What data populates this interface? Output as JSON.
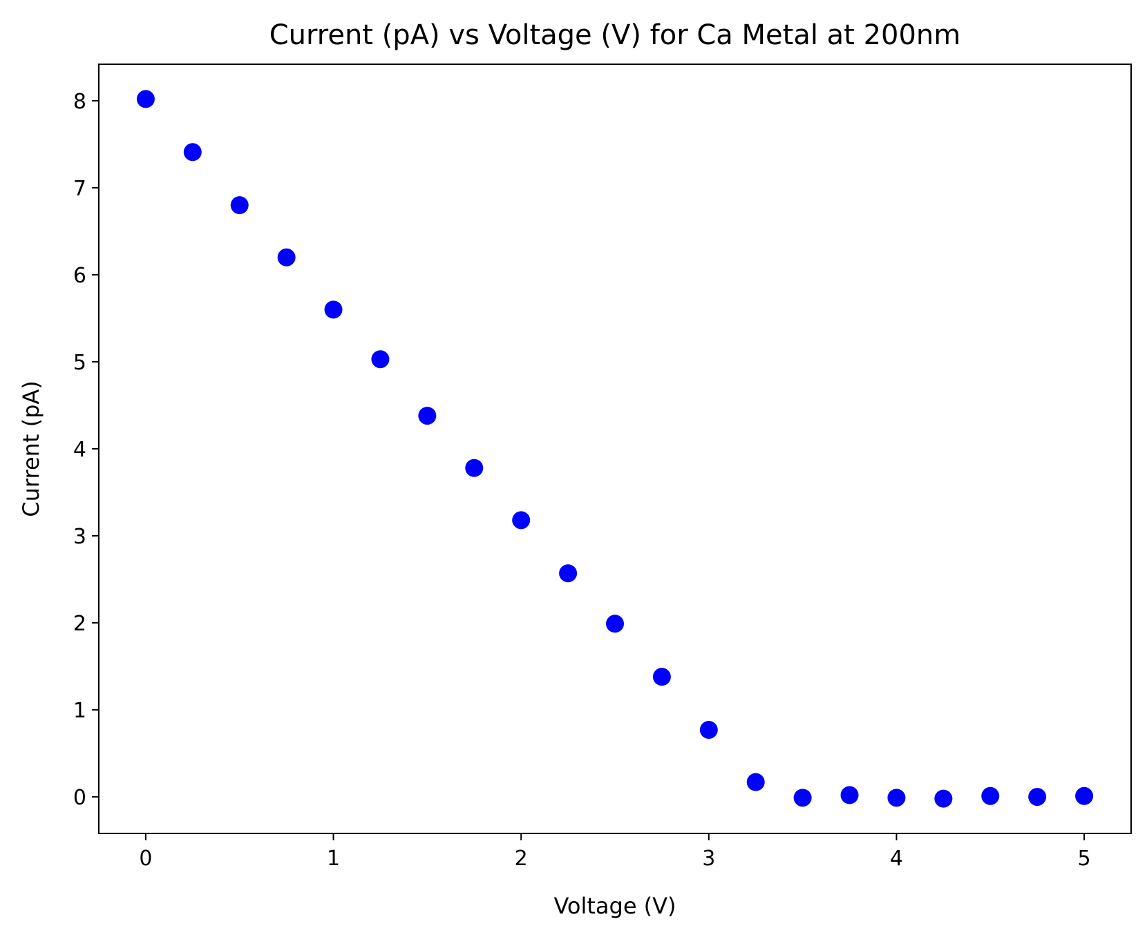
{
  "chart_data": {
    "type": "scatter",
    "title": "Current (pA) vs Voltage (V) for Ca Metal at 200nm",
    "xlabel": "Voltage (V)",
    "ylabel": "Current (pA)",
    "xlim": [
      -0.25,
      5.25
    ],
    "ylim": [
      -0.42,
      8.42
    ],
    "xticks": [
      0,
      1,
      2,
      3,
      4,
      5
    ],
    "yticks": [
      0,
      1,
      2,
      3,
      4,
      5,
      6,
      7,
      8
    ],
    "grid": false,
    "marker_color": "#0000ff",
    "series": [
      {
        "x": [
          0,
          0.25,
          0.5,
          0.75,
          1.0,
          1.25,
          1.5,
          1.75,
          2.0,
          2.25,
          2.5,
          2.75,
          3.0,
          3.25,
          3.5,
          3.75,
          4.0,
          4.25,
          4.5,
          4.75,
          5.0
        ],
        "y": [
          8.02,
          7.41,
          6.8,
          6.2,
          5.6,
          5.03,
          4.38,
          3.78,
          3.18,
          2.57,
          1.99,
          1.38,
          0.77,
          0.17,
          -0.01,
          0.02,
          -0.01,
          -0.02,
          0.01,
          0.0,
          0.01
        ]
      }
    ]
  }
}
